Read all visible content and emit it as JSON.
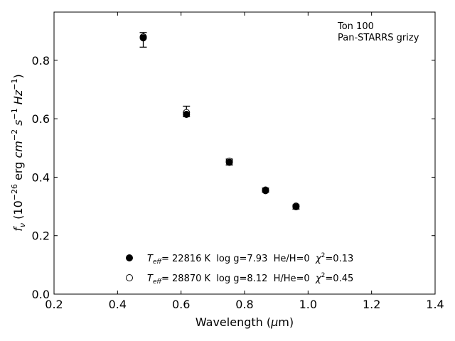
{
  "chart_data": {
    "type": "scatter",
    "annotation": [
      "Ton 100",
      "Pan-STARRS grizy"
    ],
    "xlabel": {
      "pre": "Wavelength (",
      "mu": "μ",
      "post": "m)"
    },
    "ylabel": {
      "f": "f",
      "sub": "ν",
      "mid": " (10",
      "exp1": "−26",
      "erg": " erg ",
      "cm": "cm",
      "exp2": "−2",
      "s": " s",
      "exp3": "−1",
      "hz": " Hz",
      "exp4": "−1",
      "close": ")"
    },
    "xlim": [
      0.2,
      1.4
    ],
    "ylim": [
      0.0,
      0.965
    ],
    "xticks": [
      0.2,
      0.4,
      0.6,
      0.8,
      1.0,
      1.2,
      1.4
    ],
    "xtick_labels": [
      "0.2",
      "0.4",
      "0.6",
      "0.8",
      "1.0",
      "1.2",
      "1.4"
    ],
    "yticks": [
      0.0,
      0.2,
      0.4,
      0.6,
      0.8
    ],
    "ytick_labels": [
      "0.0",
      "0.2",
      "0.4",
      "0.6",
      "0.8"
    ],
    "observed": {
      "x": [
        0.481,
        0.617,
        0.752,
        0.866,
        0.962
      ],
      "y": [
        0.87,
        0.625,
        0.452,
        0.356,
        0.298
      ],
      "yerr_low": [
        0.025,
        0.018,
        0.01,
        0.007,
        0.007
      ],
      "yerr_high": [
        0.025,
        0.018,
        0.01,
        0.007,
        0.007
      ]
    },
    "series": [
      {
        "marker": "filled",
        "x": [
          0.481,
          0.617,
          0.752,
          0.866,
          0.962
        ],
        "y": [
          0.877,
          0.615,
          0.451,
          0.354,
          0.299
        ]
      },
      {
        "marker": "open",
        "x": [
          0.481,
          0.617,
          0.752,
          0.866,
          0.962
        ],
        "y": [
          0.88,
          0.621,
          0.455,
          0.356,
          0.301
        ]
      }
    ],
    "legend": [
      {
        "marker": "filled",
        "T": "T",
        "sub": "eff",
        "rest": "= 22816 K  log g=7.93  He/H=0  ",
        "chi": "χ",
        "exp": "2",
        "val": "=0.13"
      },
      {
        "marker": "open",
        "T": "T",
        "sub": "eff",
        "rest": "= 28870 K  log g=8.12  H/He=0  ",
        "chi": "χ",
        "exp": "2",
        "val": "=0.45"
      }
    ],
    "legend_position": "lower-center",
    "grid": false
  }
}
